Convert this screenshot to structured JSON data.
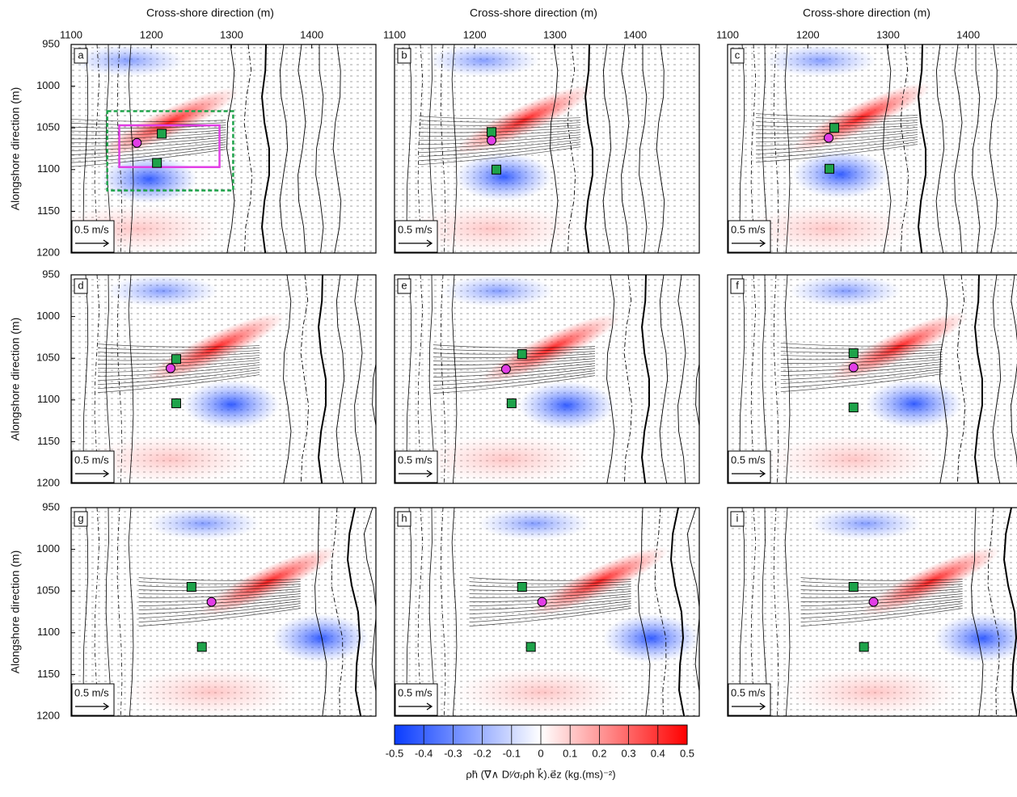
{
  "chart_data": {
    "type": "scatter",
    "x_label": "Cross-shore direction (m)",
    "y_label": "Alongshore direction (m)",
    "xlim": [
      1100,
      1480
    ],
    "xticks": [
      1100,
      1200,
      1300,
      1400
    ],
    "ylim": [
      950,
      1200
    ],
    "yticks": [
      950,
      1000,
      1050,
      1100,
      1150,
      1200
    ],
    "y_inverted": true,
    "scale_label": "0.5 m/s",
    "square_color": "#1ea34a",
    "circle_color": "#e23ee6",
    "panels": [
      {
        "label": "a",
        "squares": {
          "x": [
            1213,
            1207
          ],
          "y": [
            1057,
            1092
          ]
        },
        "circles": {
          "x": [
            1182
          ],
          "y": [
            1068
          ]
        }
      },
      {
        "label": "b",
        "squares": {
          "x": [
            1221,
            1227
          ],
          "y": [
            1055,
            1100
          ]
        },
        "circles": {
          "x": [
            1221
          ],
          "y": [
            1065
          ]
        }
      },
      {
        "label": "c",
        "squares": {
          "x": [
            1233,
            1227
          ],
          "y": [
            1050,
            1099
          ]
        },
        "circles": {
          "x": [
            1226
          ],
          "y": [
            1062
          ]
        }
      },
      {
        "label": "d",
        "squares": {
          "x": [
            1231,
            1231
          ],
          "y": [
            1051,
            1104
          ]
        },
        "circles": {
          "x": [
            1224
          ],
          "y": [
            1062
          ]
        }
      },
      {
        "label": "e",
        "squares": {
          "x": [
            1259,
            1246
          ],
          "y": [
            1045,
            1104
          ]
        },
        "circles": {
          "x": [
            1239
          ],
          "y": [
            1063
          ]
        }
      },
      {
        "label": "f",
        "squares": {
          "x": [
            1257,
            1257
          ],
          "y": [
            1044,
            1109
          ]
        },
        "circles": {
          "x": [
            1257
          ],
          "y": [
            1061
          ]
        }
      },
      {
        "label": "g",
        "squares": {
          "x": [
            1250,
            1263
          ],
          "y": [
            1045,
            1117
          ]
        },
        "circles": {
          "x": [
            1275
          ],
          "y": [
            1063
          ]
        }
      },
      {
        "label": "h",
        "squares": {
          "x": [
            1259,
            1270
          ],
          "y": [
            1045,
            1117
          ]
        },
        "circles": {
          "x": [
            1284
          ],
          "y": [
            1063
          ]
        }
      },
      {
        "label": "i",
        "squares": {
          "x": [
            1257,
            1270
          ],
          "y": [
            1045,
            1117
          ]
        },
        "circles": {
          "x": [
            1282
          ],
          "y": [
            1063
          ]
        }
      }
    ],
    "colorbar": {
      "lim": [
        -0.5,
        0.5
      ],
      "ticks": [
        -0.5,
        -0.4,
        -0.3,
        -0.2,
        -0.1,
        0,
        0.1,
        0.2,
        0.3,
        0.4,
        0.5
      ],
      "colors": [
        "#0a3cff",
        "#ffffff",
        "#ff0000"
      ],
      "label": "ρh̄ (∇⃗∧ Dʳ⁄σᵣρh k⃗).e⃗z  (kg.(ms)⁻²)"
    }
  }
}
